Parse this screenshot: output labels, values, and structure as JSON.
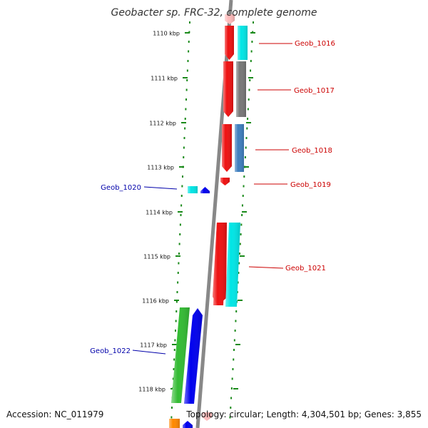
{
  "title": "Geobacter sp. FRC-32, complete genome",
  "footer": {
    "accession": "Accession: NC_011979",
    "summary": "Topology: circular; Length: 4,304,501 bp; Genes: 3,855"
  },
  "colors": {
    "backbone": "#888888",
    "tick": "#1a8a1a",
    "label_forward": "#cc0000",
    "label_reverse": "#0000aa"
  },
  "ticks": [
    {
      "label": "1110 kbp"
    },
    {
      "label": "1111 kbp"
    },
    {
      "label": "1112 kbp"
    },
    {
      "label": "1113 kbp"
    },
    {
      "label": "1114 kbp"
    },
    {
      "label": "1115 kbp"
    },
    {
      "label": "1116 kbp"
    },
    {
      "label": "1117 kbp"
    },
    {
      "label": "1118 kbp"
    }
  ],
  "genes": [
    {
      "name": "Geob_1016",
      "strand": "forward",
      "cds_color": "#ee1111",
      "func_color": "#00e5e5"
    },
    {
      "name": "Geob_1017",
      "strand": "forward",
      "cds_color": "#ee1111",
      "func_color": "#777777"
    },
    {
      "name": "Geob_1018",
      "strand": "forward",
      "cds_color": "#ee1111",
      "func_color": "#3f7fbf"
    },
    {
      "name": "Geob_1019",
      "strand": "forward",
      "cds_color": "#ee1111",
      "func_color": ""
    },
    {
      "name": "Geob_1020",
      "strand": "reverse",
      "cds_color": "#0000ee",
      "func_color": "#00e5e5"
    },
    {
      "name": "Geob_1021",
      "strand": "forward",
      "cds_color": "#ee1111",
      "func_color": "#00e5e5"
    },
    {
      "name": "Geob_1022",
      "strand": "reverse",
      "cds_color": "#0000ee",
      "func_color": "#33bb33"
    }
  ],
  "partial_features": [
    {
      "strand": "forward",
      "color": "#ffbbbb",
      "position": "top"
    },
    {
      "strand": "forward",
      "color": "#ffbbbb",
      "position": "bottom"
    },
    {
      "strand": "reverse",
      "color": "#0000ee",
      "position": "bottom"
    },
    {
      "strand": "reverse",
      "color": "#ff8800",
      "position": "bottom"
    }
  ]
}
